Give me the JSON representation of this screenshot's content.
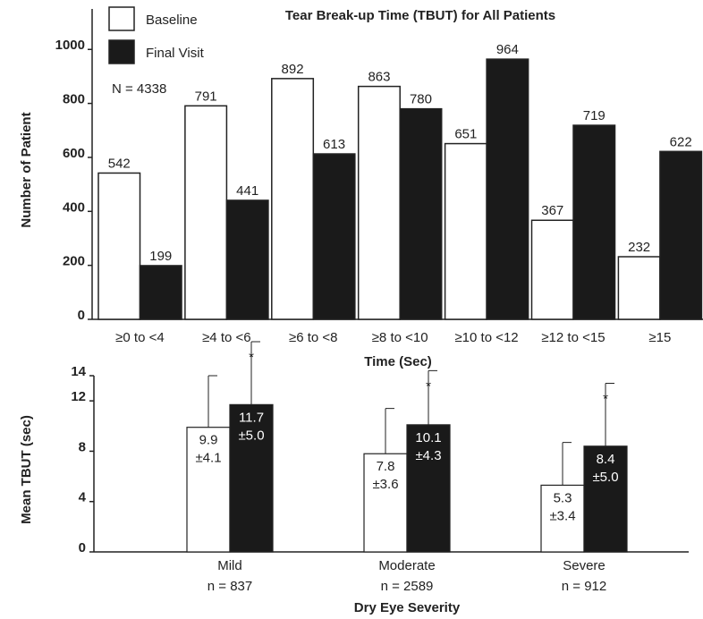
{
  "chart_data": [
    {
      "type": "bar",
      "title": "Tear Break-up Time (TBUT) for All Patients",
      "x_label": "Time (Sec)",
      "y_label": "Number of Patient",
      "annotation": "N = 4338",
      "legend": "top-left",
      "categories": [
        "≥0 to <4",
        "≥4 to <6",
        "≥6 to <8",
        "≥8 to <10",
        "≥10 to <12",
        "≥12 to <15",
        "≥15"
      ],
      "series": [
        {
          "name": "Baseline",
          "color": "#ffffff",
          "values": [
            542,
            791,
            892,
            863,
            651,
            367,
            232
          ]
        },
        {
          "name": "Final Visit",
          "color": "#1a1a1a",
          "values": [
            199,
            441,
            613,
            780,
            964,
            719,
            622
          ]
        }
      ],
      "ylim": [
        0,
        1150
      ],
      "yticks": [
        0,
        200,
        400,
        600,
        800,
        1000
      ]
    },
    {
      "type": "bar_error",
      "x_label": "Dry Eye Severity",
      "y_label": "Mean TBUT (sec)",
      "categories": [
        "Mild",
        "Moderate",
        "Severe"
      ],
      "category_notes": [
        "n = 837",
        "n = 2589",
        "n = 912"
      ],
      "series": [
        {
          "color": "#ffffff",
          "values": [
            9.9,
            7.8,
            5.3
          ],
          "errors": [
            4.1,
            3.6,
            3.4
          ],
          "error_labels": [
            "±4.1",
            "±3.6",
            "±3.4"
          ]
        },
        {
          "color": "#1a1a1a",
          "values": [
            11.7,
            10.1,
            8.4
          ],
          "errors": [
            5.0,
            4.3,
            5.0
          ],
          "error_labels": [
            "±5.0",
            "±4.3",
            "±5.0"
          ],
          "significance_marks": [
            "*",
            "*",
            "*"
          ]
        }
      ],
      "ylim": [
        0,
        14
      ],
      "yticks": [
        0,
        4,
        8,
        12,
        14
      ]
    }
  ]
}
